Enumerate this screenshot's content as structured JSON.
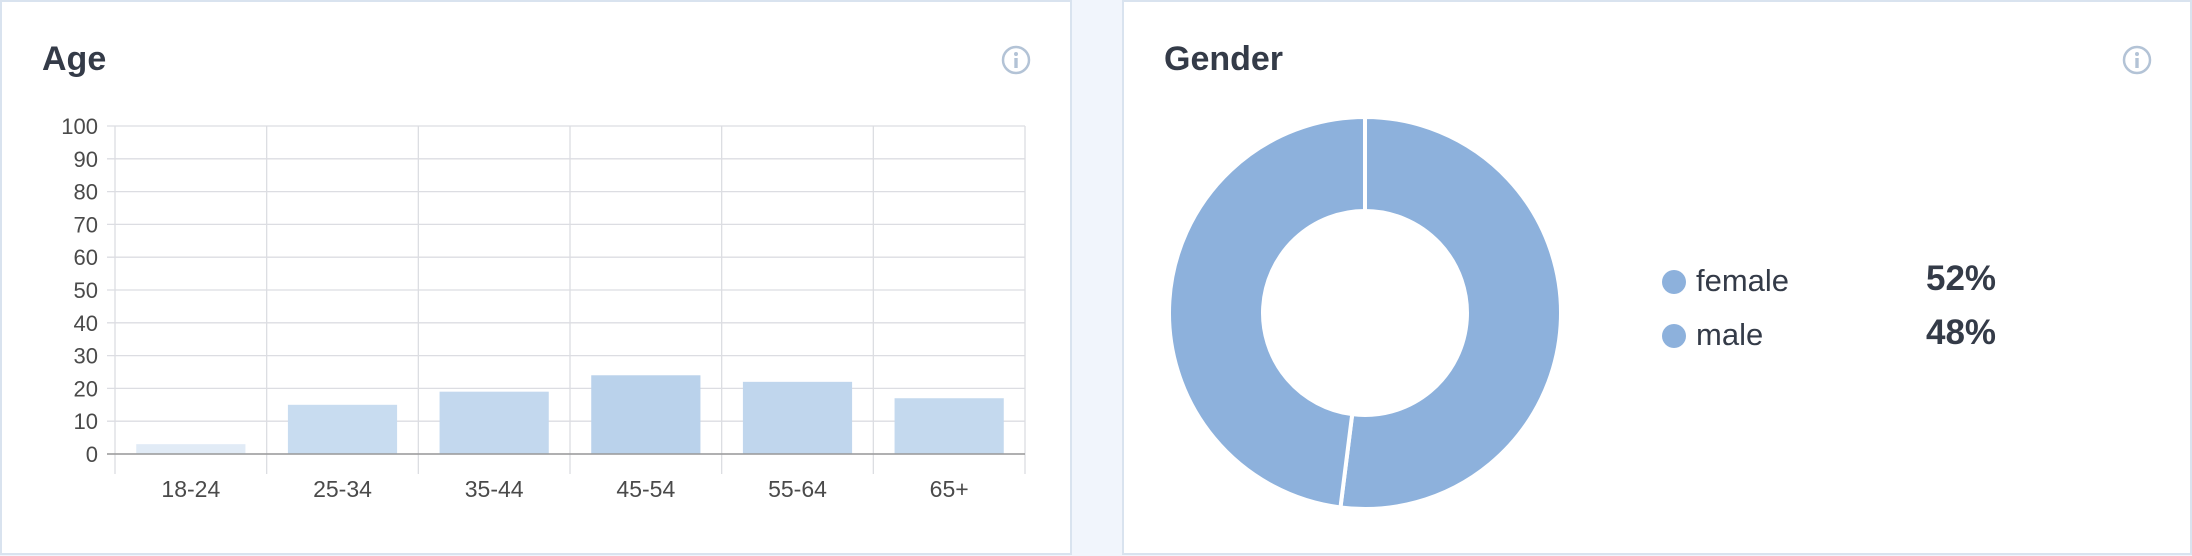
{
  "age_card": {
    "title": "Age",
    "info_icon": "info-icon"
  },
  "gender_card": {
    "title": "Gender",
    "info_icon": "info-icon"
  },
  "colors": {
    "bar_fills": [
      "#e1ebf6",
      "#c8dcf0",
      "#c3d8ee",
      "#bad2eb",
      "#c0d6ed",
      "#c4d9ee"
    ],
    "pie_fill": "#8db1dc",
    "grid": "#dcdde2",
    "axis": "#999999",
    "text": "#343b48",
    "tick_text": "#4a4a4a"
  },
  "chart_data": [
    {
      "type": "bar",
      "title": "Age",
      "categories": [
        "18-24",
        "25-34",
        "35-44",
        "45-54",
        "55-64",
        "65+"
      ],
      "values": [
        3,
        15,
        19,
        24,
        22,
        17
      ],
      "yticks": [
        "0",
        "10",
        "20",
        "30",
        "40",
        "50",
        "60",
        "70",
        "80",
        "90",
        "100"
      ],
      "ylim": [
        0,
        100
      ],
      "grid": true
    },
    {
      "type": "pie",
      "title": "Gender",
      "donut": true,
      "categories": [
        "female",
        "male"
      ],
      "values": [
        52,
        48
      ],
      "value_labels": [
        "52%",
        "48%"
      ],
      "legend_position": "right"
    }
  ]
}
